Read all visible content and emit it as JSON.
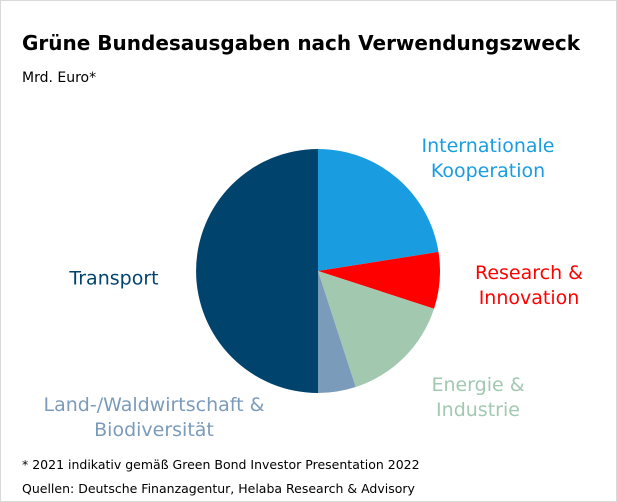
{
  "chart_data": {
    "type": "pie",
    "title": "Grüne Bundesausgaben nach Verwendungszweck",
    "subtitle": "Mrd. Euro*",
    "notes": [
      "* 2021 indikativ gemäß Green Bond Investor Presentation 2022",
      "Quellen: Deutsche Finanzagentur, Helaba Research & Advisory"
    ],
    "categories": [
      "Internationale Kooperation",
      "Research & Innovation",
      "Energie & Industrie",
      "Land-/Waldwirtschaft & Biodiversität",
      "Transport"
    ],
    "values": [
      22.5,
      7.5,
      15,
      5,
      50
    ],
    "colors": [
      "#1a9de0",
      "#ff0000",
      "#a2c9b0",
      "#7b9bbb",
      "#00446e"
    ]
  }
}
